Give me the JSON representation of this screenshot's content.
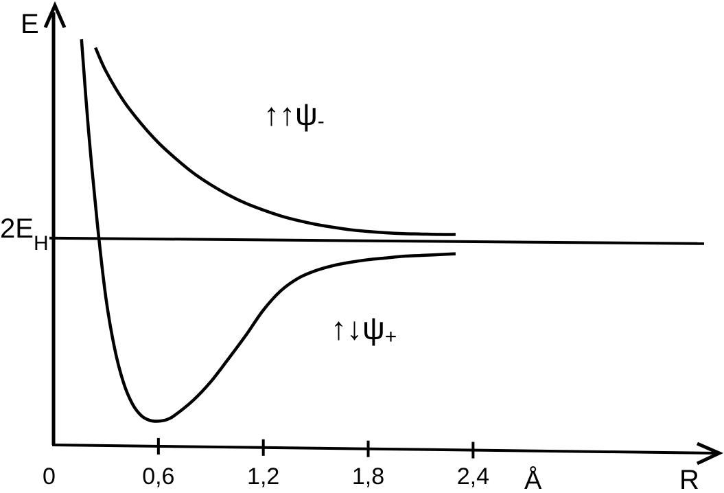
{
  "chart_data": {
    "type": "line",
    "xlabel": "R",
    "ylabel": "E",
    "x_unit": "Å",
    "origin_label": "0",
    "x_ticks": [
      {
        "value": 0.6,
        "label": "0,6"
      },
      {
        "value": 1.2,
        "label": "1,2"
      },
      {
        "value": 1.8,
        "label": "1,8"
      },
      {
        "value": 2.4,
        "label": "2,4"
      }
    ],
    "reference_line": {
      "label_main": "2E",
      "label_sub": "H",
      "y": 0
    },
    "series": [
      {
        "label_prefix": "↑↑",
        "label_main": "ψ",
        "label_sub": "-",
        "x": [
          0.24,
          0.3,
          0.4,
          0.5,
          0.6,
          0.7,
          0.8,
          0.9,
          1.0,
          1.1,
          1.2,
          1.3,
          1.4,
          1.5,
          1.6,
          1.7,
          1.8,
          1.9,
          2.0,
          2.1,
          2.2,
          2.3
        ],
        "y": [
          4.56,
          4.0,
          3.3,
          2.76,
          2.3,
          1.92,
          1.58,
          1.3,
          1.06,
          0.86,
          0.7,
          0.56,
          0.45,
          0.36,
          0.29,
          0.23,
          0.19,
          0.16,
          0.14,
          0.13,
          0.12,
          0.12
        ]
      },
      {
        "label_prefix": "↑↓",
        "label_main": "ψ",
        "label_sub": "+",
        "x": [
          0.16,
          0.2,
          0.25,
          0.3,
          0.35,
          0.4,
          0.45,
          0.5,
          0.55,
          0.6,
          0.65,
          0.7,
          0.8,
          0.9,
          1.0,
          1.1,
          1.2,
          1.3,
          1.4,
          1.5,
          1.6,
          1.7,
          1.8,
          1.9,
          2.0,
          2.1,
          2.2,
          2.3
        ],
        "y": [
          4.76,
          2.6,
          0.4,
          -1.4,
          -2.6,
          -3.4,
          -3.9,
          -4.18,
          -4.3,
          -4.32,
          -4.28,
          -4.16,
          -3.82,
          -3.38,
          -2.84,
          -2.28,
          -1.68,
          -1.22,
          -0.92,
          -0.74,
          -0.62,
          -0.54,
          -0.48,
          -0.44,
          -0.4,
          -0.38,
          -0.36,
          -0.34
        ]
      }
    ],
    "xlim": [
      0,
      3.8
    ],
    "ylim": [
      -4.95,
      5.4
    ]
  }
}
